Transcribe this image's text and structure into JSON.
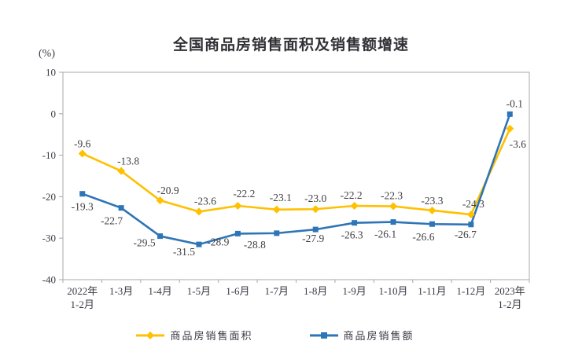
{
  "page": {
    "background": "#ffffff"
  },
  "chart_data": {
    "type": "line",
    "title": "全国商品房销售面积及销售额增速",
    "y_unit_label": "(%)",
    "categories": [
      [
        "2022年",
        "1-2月"
      ],
      "1-3月",
      "1-4月",
      "1-5月",
      "1-6月",
      "1-7月",
      "1-8月",
      "1-9月",
      "1-10月",
      "1-11月",
      "1-12月",
      [
        "2023年",
        "1-2月"
      ]
    ],
    "y_axis": {
      "min": -40,
      "max": 10,
      "step": 10,
      "ticks": [
        10,
        0,
        -10,
        -20,
        -30,
        -40
      ]
    },
    "grid": false,
    "legend_position": "bottom",
    "text_color": "#3a3a45",
    "axis_color": "#a8a8a8",
    "series": [
      {
        "name": "商品房销售面积",
        "color": "#FFC000",
        "marker": "diamond",
        "values": [
          -9.6,
          -13.8,
          -20.9,
          -23.6,
          -22.2,
          -23.1,
          -23.0,
          -22.2,
          -22.3,
          -23.3,
          -24.3,
          -3.6
        ],
        "label_offsets": [
          [
            0,
            -12
          ],
          [
            9,
            -12
          ],
          [
            10,
            -12
          ],
          [
            8,
            -13
          ],
          [
            8,
            -15
          ],
          [
            5,
            -15
          ],
          [
            0,
            -13
          ],
          [
            -4,
            -13
          ],
          [
            -2,
            -13
          ],
          [
            0,
            -12
          ],
          [
            3,
            -13
          ],
          [
            10,
            20
          ]
        ]
      },
      {
        "name": "商品房销售额",
        "color": "#2E75B6",
        "marker": "square",
        "values": [
          -19.3,
          -22.7,
          -29.5,
          -31.5,
          -28.9,
          -28.8,
          -27.9,
          -26.3,
          -26.1,
          -26.6,
          -26.7,
          -0.1
        ],
        "label_offsets": [
          [
            0,
            17
          ],
          [
            -12,
            17
          ],
          [
            -20,
            9
          ],
          [
            -19,
            10
          ],
          [
            -25,
            11
          ],
          [
            -28,
            15
          ],
          [
            -3,
            12
          ],
          [
            -3,
            16
          ],
          [
            -10,
            16
          ],
          [
            -11,
            17
          ],
          [
            -7,
            13
          ],
          [
            6,
            -13
          ]
        ]
      }
    ]
  }
}
